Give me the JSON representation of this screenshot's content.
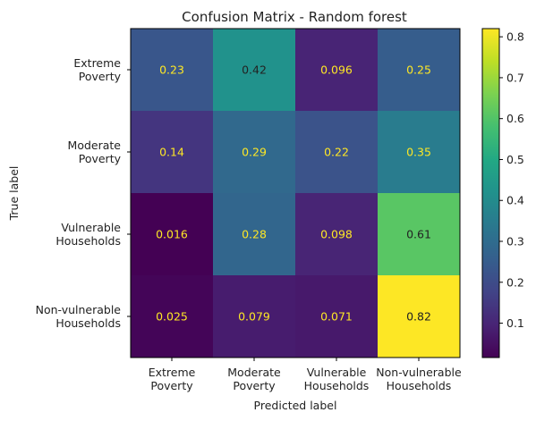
{
  "chart_data": {
    "type": "heatmap",
    "title": "Confusion Matrix - Random forest",
    "xlabel": "Predicted label",
    "ylabel": "True label",
    "x_categories": [
      [
        "Extreme",
        "Poverty"
      ],
      [
        "Moderate",
        "Poverty"
      ],
      [
        "Vulnerable",
        "Households"
      ],
      [
        "Non-vulnerable",
        "Households"
      ]
    ],
    "y_categories": [
      [
        "Extreme",
        "Poverty"
      ],
      [
        "Moderate",
        "Poverty"
      ],
      [
        "Vulnerable",
        "Households"
      ],
      [
        "Non-vulnerable",
        "Households"
      ]
    ],
    "values": [
      [
        0.23,
        0.42,
        0.096,
        0.25
      ],
      [
        0.14,
        0.29,
        0.22,
        0.35
      ],
      [
        0.016,
        0.28,
        0.098,
        0.61
      ],
      [
        0.025,
        0.079,
        0.071,
        0.82
      ]
    ],
    "cell_labels": [
      [
        "0.23",
        "0.42",
        "0.096",
        "0.25"
      ],
      [
        "0.14",
        "0.29",
        "0.22",
        "0.35"
      ],
      [
        "0.016",
        "0.28",
        "0.098",
        "0.61"
      ],
      [
        "0.025",
        "0.079",
        "0.071",
        "0.82"
      ]
    ],
    "colormap": "viridis",
    "colorbar": {
      "range": [
        0.016,
        0.82
      ],
      "ticks": [
        0.1,
        0.2,
        0.3,
        0.4,
        0.5,
        0.6,
        0.7,
        0.8
      ],
      "tick_labels": [
        "0.1",
        "0.2",
        "0.3",
        "0.4",
        "0.5",
        "0.6",
        "0.7",
        "0.8"
      ]
    },
    "grid": false,
    "label_colors": {
      "on_dark": "#fde725",
      "on_light": "#222222"
    }
  }
}
